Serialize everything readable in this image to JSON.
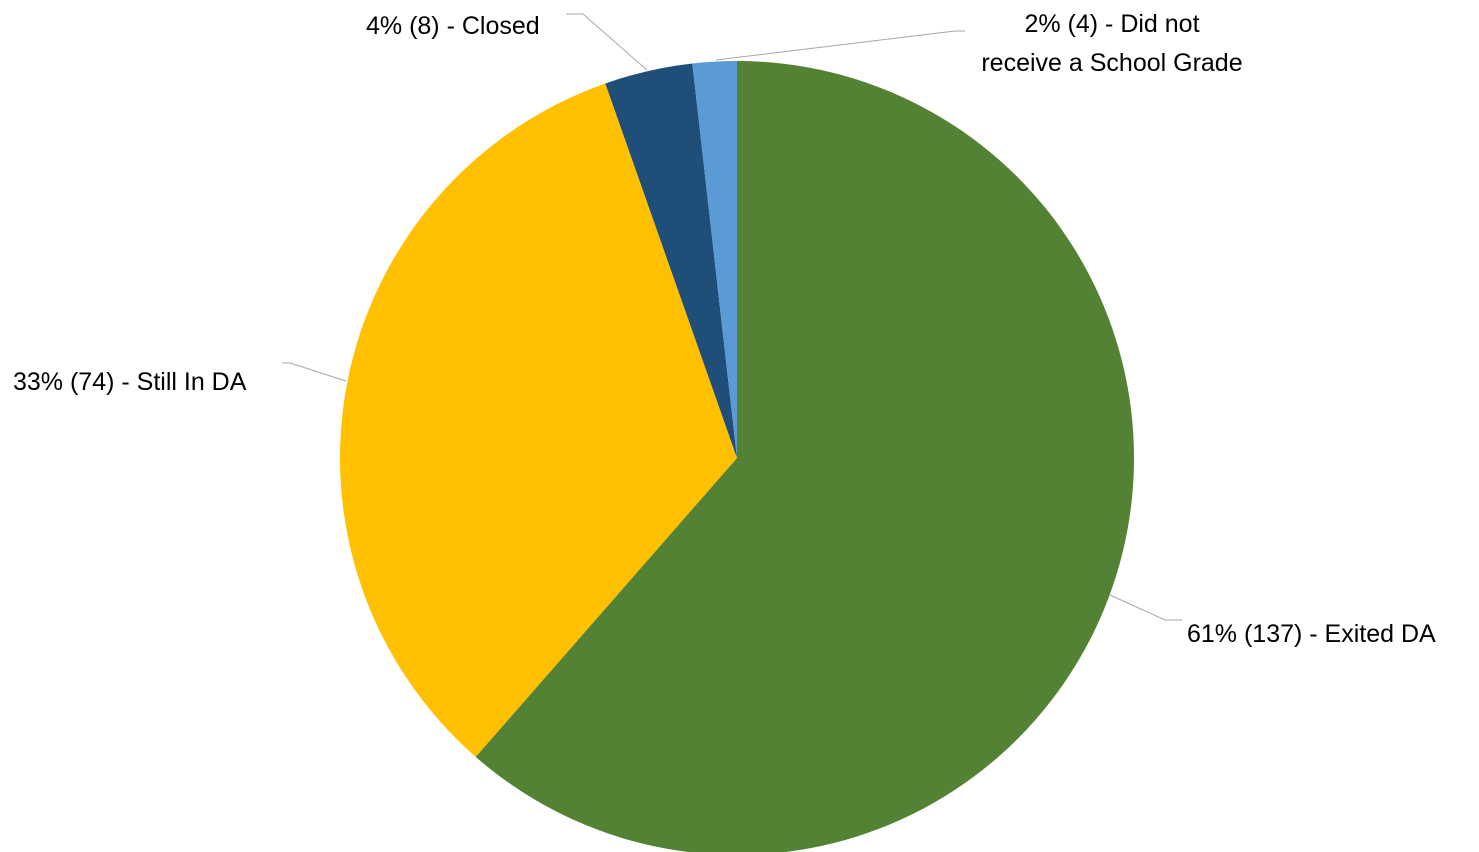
{
  "chart_data": {
    "type": "pie",
    "title": "",
    "start_angle_deg": 0,
    "direction": "clockwise",
    "slices": [
      {
        "category": "Exited DA",
        "value": 137,
        "percent": "61%",
        "label": "61% (137) - Exited DA",
        "color": "#548235"
      },
      {
        "category": "Still In DA",
        "value": 74,
        "percent": "33%",
        "label": "33% (74) - Still In DA",
        "color": "#ffc000"
      },
      {
        "category": "Closed",
        "value": 8,
        "percent": "4%",
        "label": "4% (8) - Closed",
        "color": "#1f4e79"
      },
      {
        "category": "Did not receive a School Grade",
        "value": 4,
        "percent": "2%",
        "label_lines": [
          "2% (4) - Did not",
          "receive a School Grade"
        ],
        "color": "#5b9bd5"
      }
    ],
    "legend": "none",
    "data_labels": "outside-with-leader-lines"
  }
}
